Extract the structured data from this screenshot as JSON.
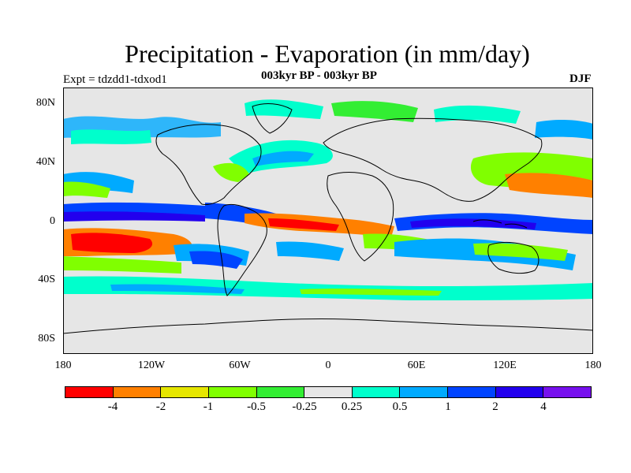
{
  "title": "Precipitation - Evaporation (in mm/day)",
  "subtitle": "003kyr BP - 003kyr BP",
  "experiment": "Expt = tdzdd1-tdxod1",
  "season": "DJF",
  "y_ticks": [
    "80N",
    "40N",
    "0",
    "40S",
    "80S"
  ],
  "x_ticks": [
    "180",
    "120W",
    "60W",
    "0",
    "60E",
    "120E",
    "180"
  ],
  "colorbar": {
    "labels": [
      "-4",
      "-2",
      "-1",
      "-0.5",
      "-0.25",
      "0.25",
      "0.5",
      "1",
      "2",
      "4"
    ],
    "colors": [
      "#ff0000",
      "#ff8000",
      "#e6e600",
      "#80ff00",
      "#33ee33",
      "#e6e6e6",
      "#00ffcc",
      "#00aaff",
      "#0044ff",
      "#2200ee",
      "#7711ee"
    ]
  }
}
